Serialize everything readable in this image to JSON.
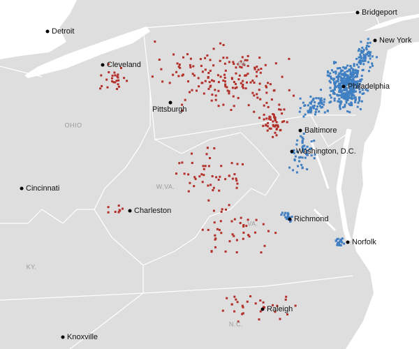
{
  "map": {
    "cities": [
      "Bridgeport",
      "New York",
      "Detroit",
      "Cleveland",
      "Philadelphia",
      "Pittsburgh",
      "Baltimore",
      "Washington, D.C.",
      "Cincinnati",
      "Charleston",
      "Richmond",
      "Norfolk",
      "Raleigh",
      "Knoxville"
    ],
    "states": [
      "PA.",
      "OHIO",
      "W.VA.",
      "VA.",
      "KY.",
      "N.C."
    ]
  }
}
